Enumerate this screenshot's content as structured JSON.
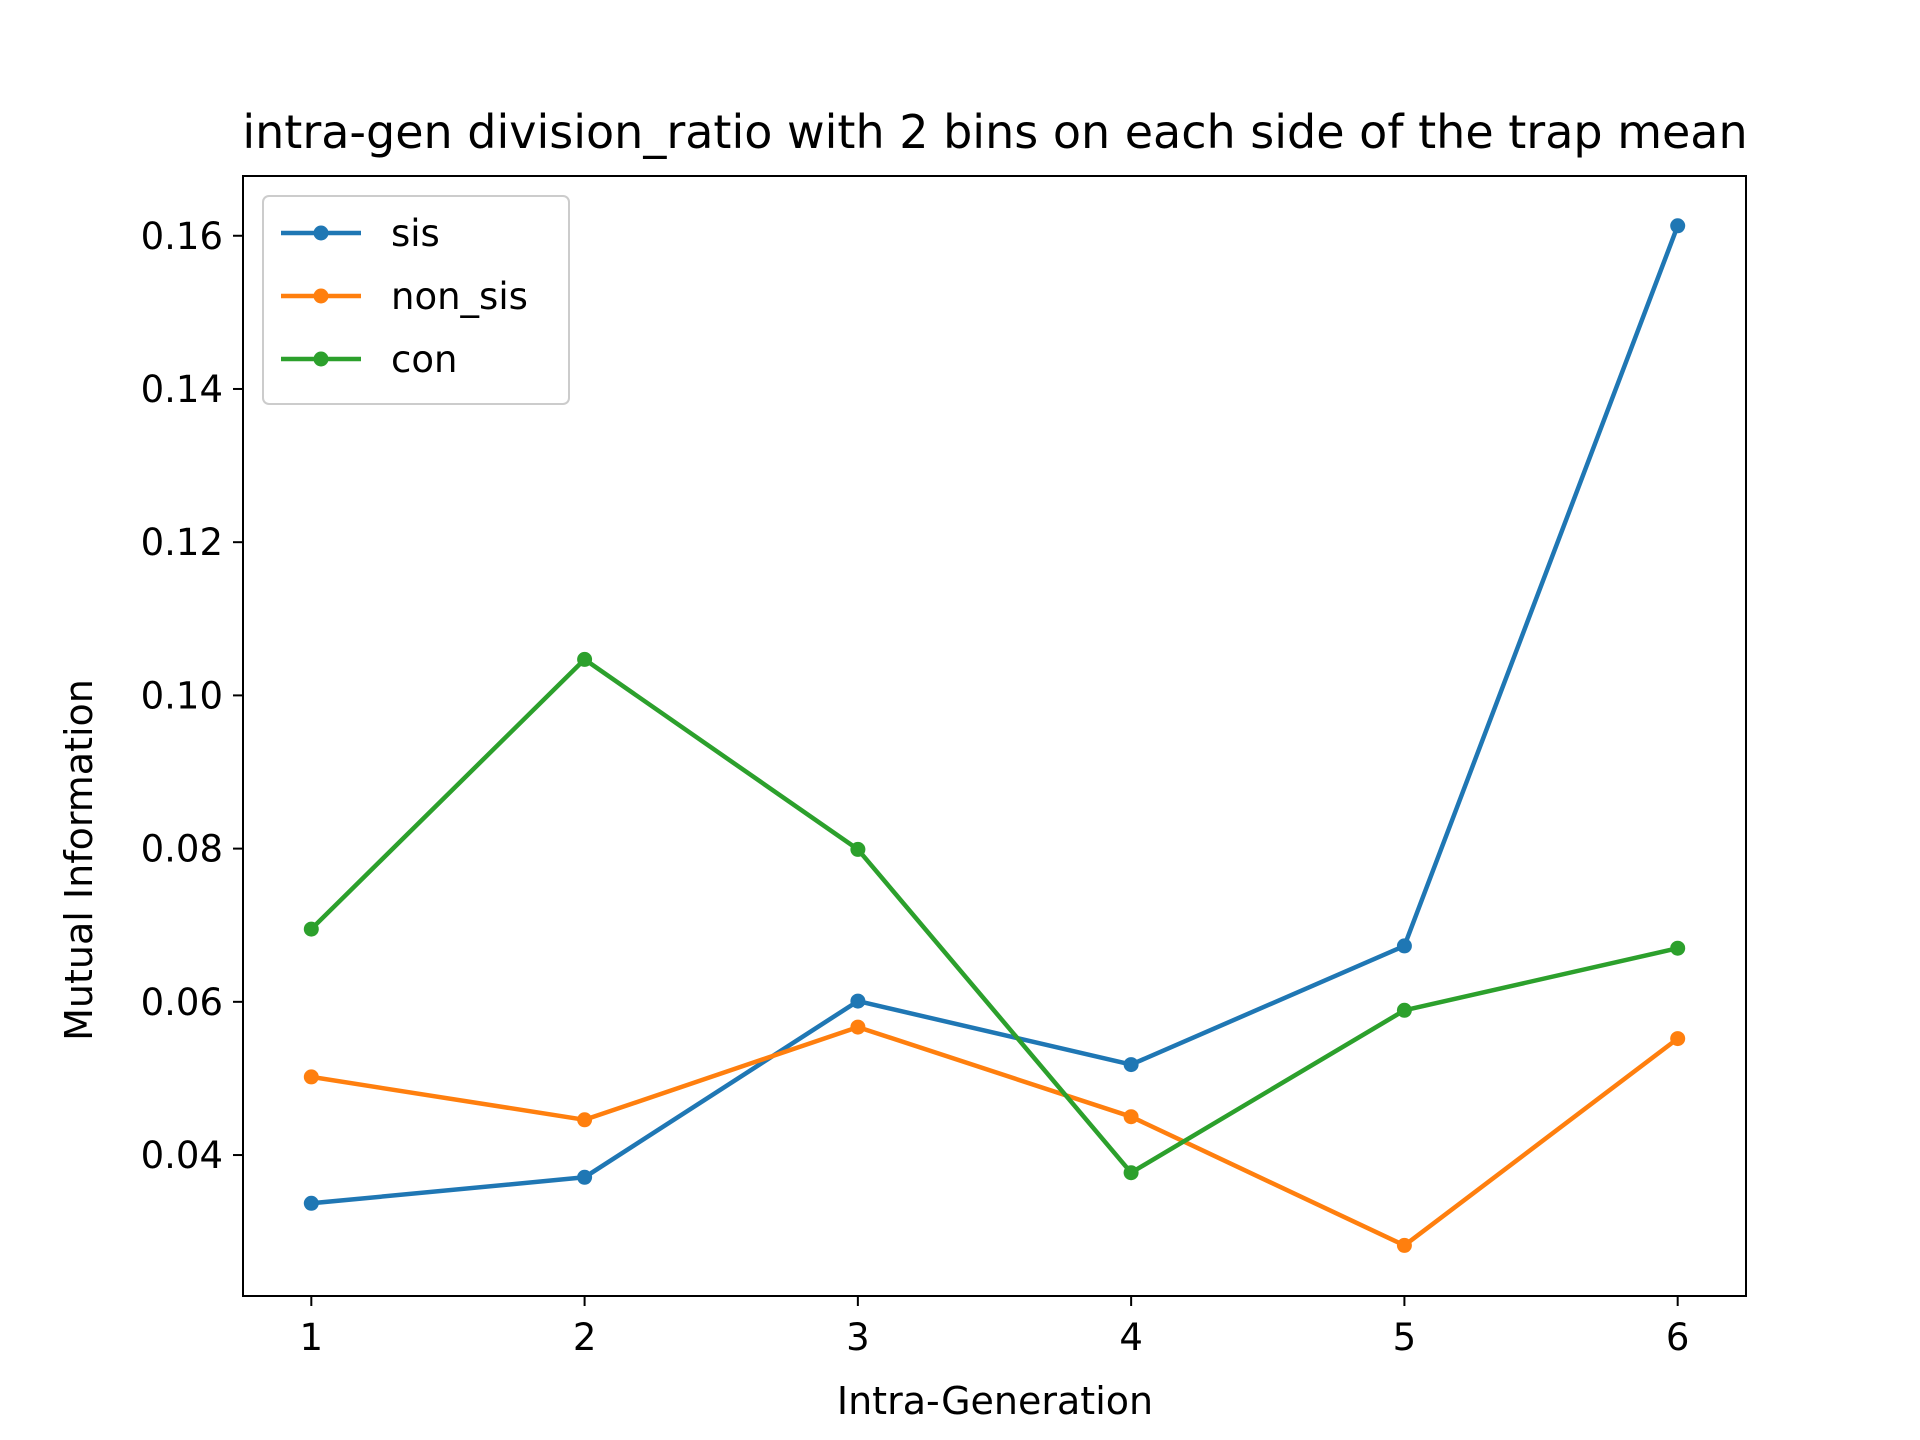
{
  "chart_data": {
    "type": "line",
    "title": "intra-gen division_ratio with 2 bins on each side of the trap mean",
    "xlabel": "Intra-Generation",
    "ylabel": "Mutual Information",
    "x": [
      1,
      2,
      3,
      4,
      5,
      6
    ],
    "xticks": [
      "1",
      "2",
      "3",
      "4",
      "5",
      "6"
    ],
    "yticks": [
      "0.04",
      "0.06",
      "0.08",
      "0.10",
      "0.12",
      "0.14",
      "0.16"
    ],
    "xlim": [
      0.75,
      6.25
    ],
    "ylim": [
      0.0216,
      0.1678
    ],
    "grid": false,
    "legend_position": "upper-left",
    "series": [
      {
        "name": "sis",
        "color": "#1f77b4",
        "values": [
          0.0337,
          0.0371,
          0.0601,
          0.0518,
          0.0673,
          0.1613
        ]
      },
      {
        "name": "non_sis",
        "color": "#ff7f0e",
        "values": [
          0.0502,
          0.0446,
          0.0567,
          0.045,
          0.0282,
          0.0552
        ]
      },
      {
        "name": "con",
        "color": "#2ca02c",
        "values": [
          0.0695,
          0.1047,
          0.0799,
          0.0377,
          0.0589,
          0.067
        ]
      }
    ]
  }
}
